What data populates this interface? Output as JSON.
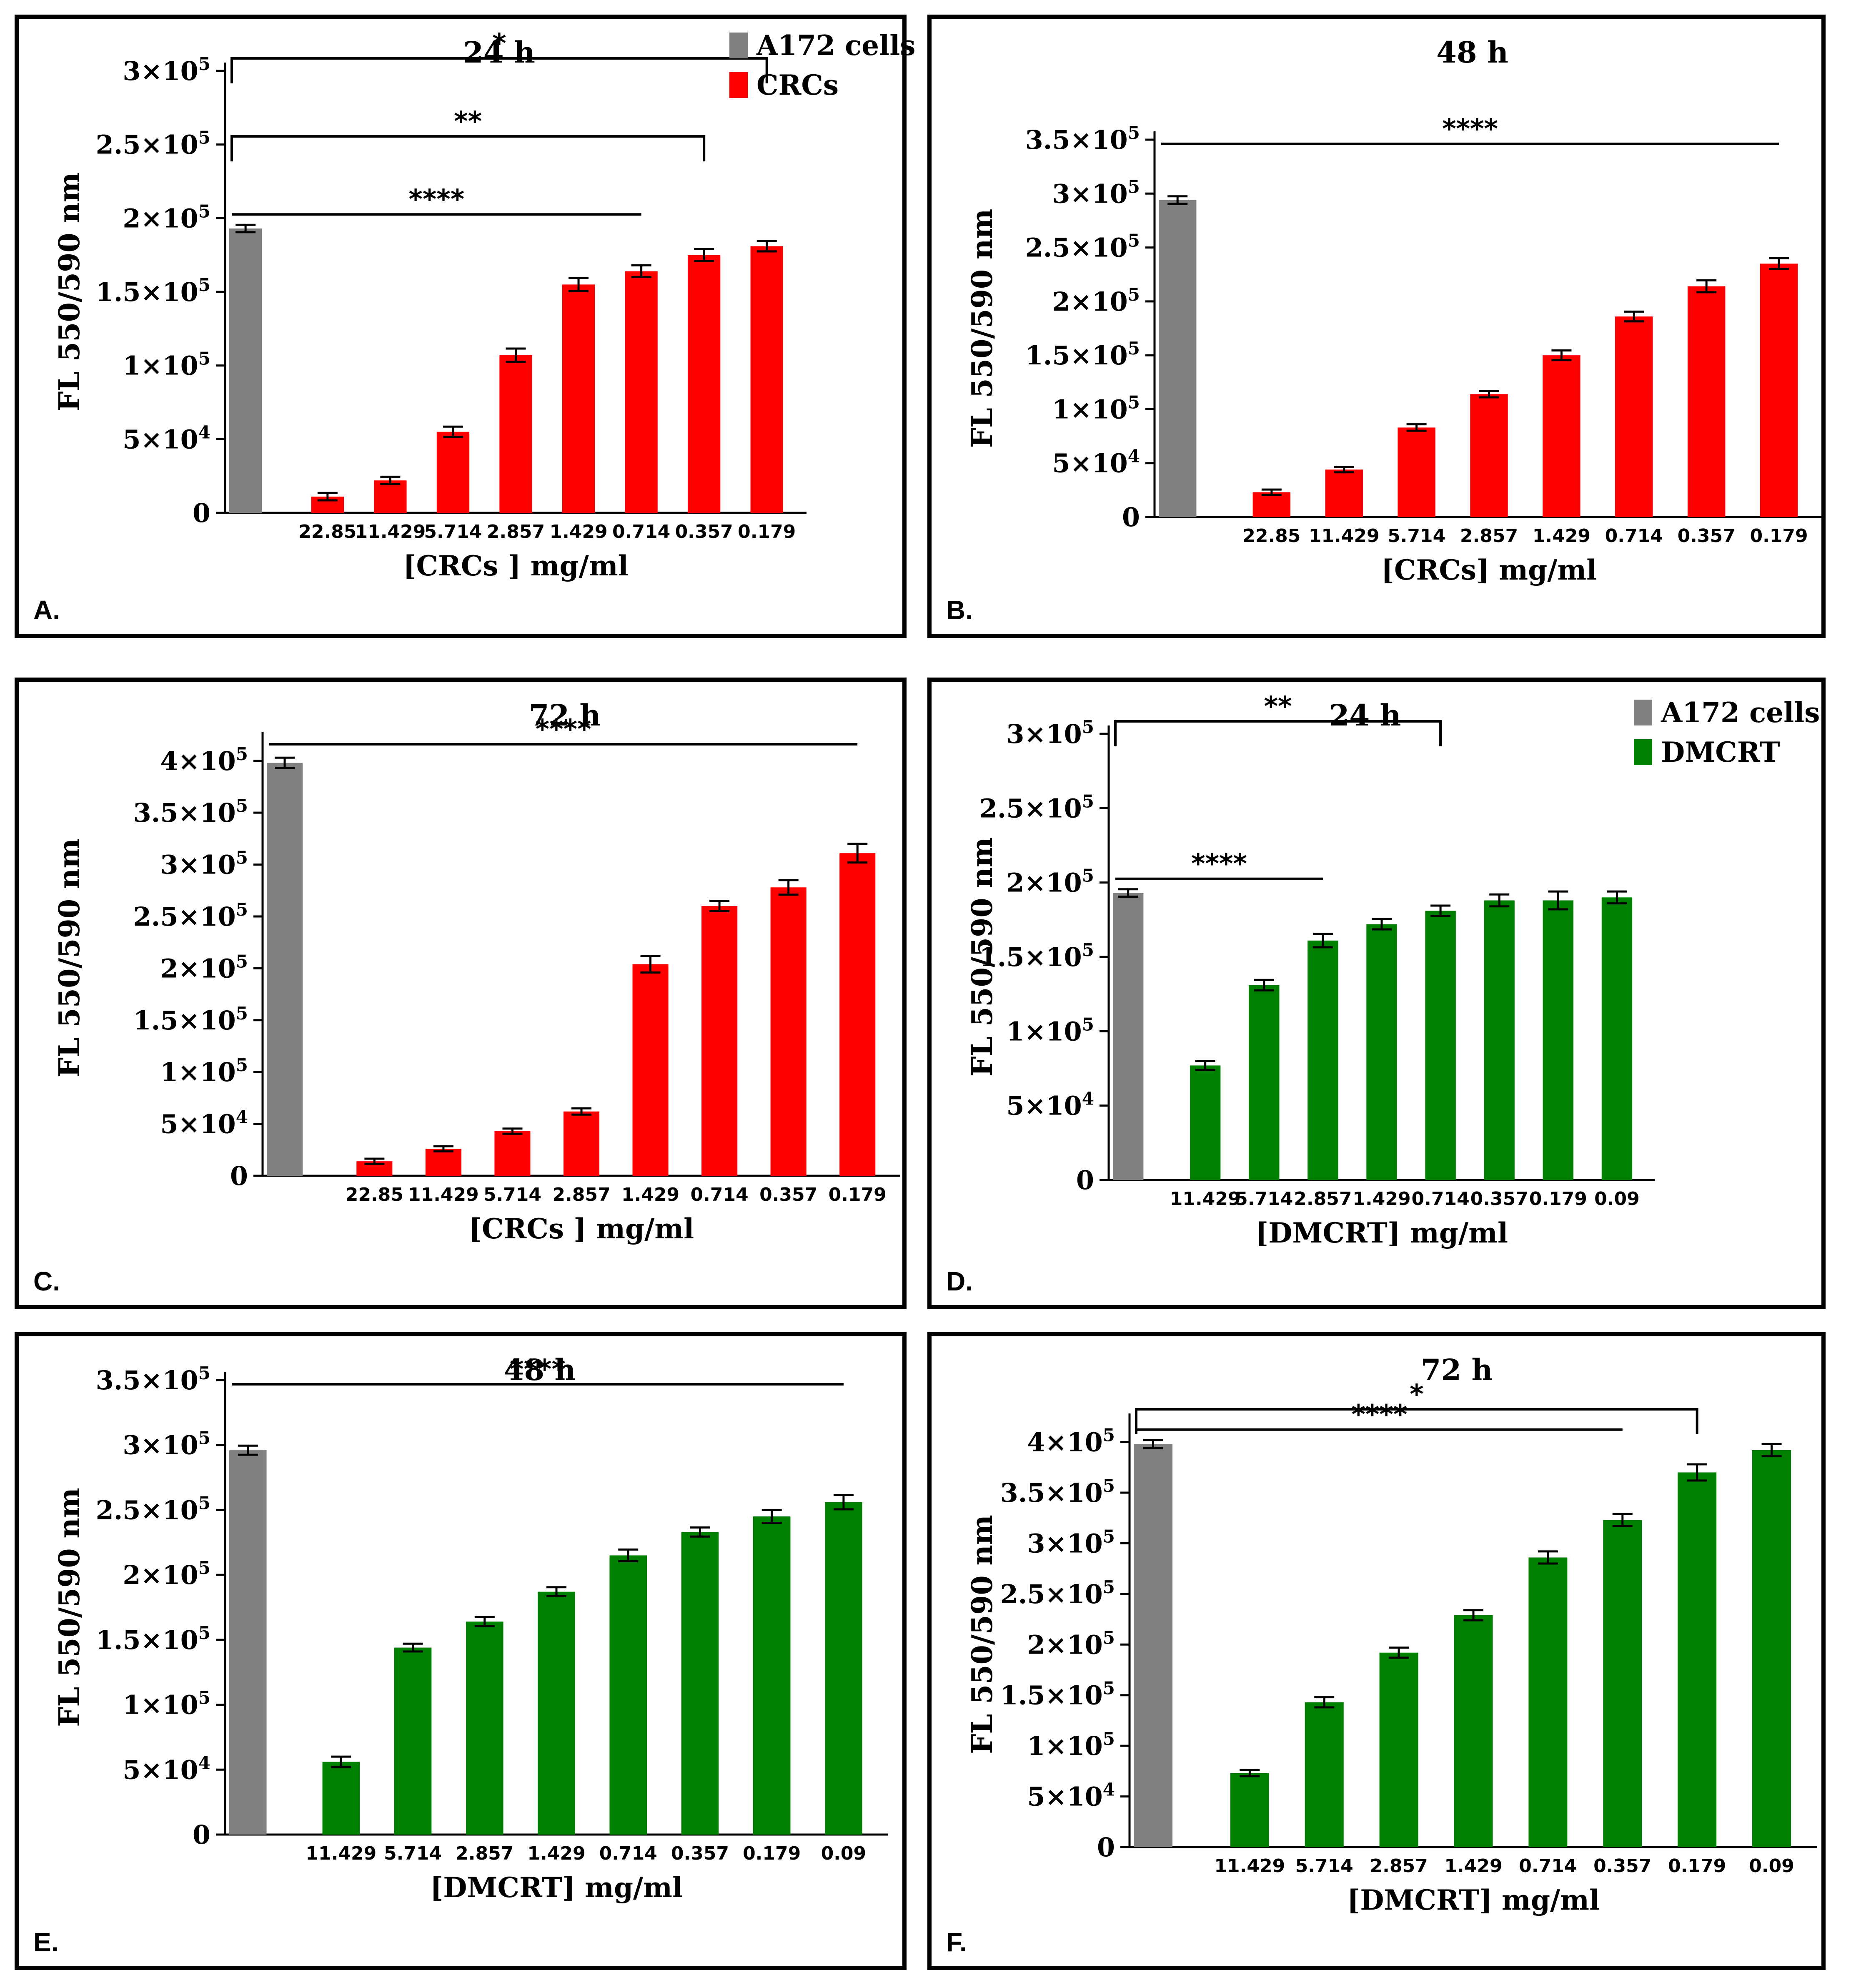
{
  "colors": {
    "control": "#808080",
    "crcs": "#ff0000",
    "dmcrt": "#008000",
    "frame": "#000000",
    "errorbar": "#000000"
  },
  "chart_data": [
    {
      "panel_label": "A.",
      "type": "bar",
      "title": "24 h",
      "ylabel": "FL 550/590 nm",
      "xlabel": "[CRCs ] mg/ml",
      "ylim": [
        0,
        300000
      ],
      "yticks": [
        {
          "value": 0,
          "base": "0",
          "exp": ""
        },
        {
          "value": 50000,
          "base": "5×10",
          "exp": "4"
        },
        {
          "value": 100000,
          "base": "1×10",
          "exp": "5"
        },
        {
          "value": 150000,
          "base": "1.5×10",
          "exp": "5"
        },
        {
          "value": 200000,
          "base": "2×10",
          "exp": "5"
        },
        {
          "value": 250000,
          "base": "2.5×10",
          "exp": "5"
        },
        {
          "value": 300000,
          "base": "3×10",
          "exp": "5"
        }
      ],
      "control": {
        "name": "A172 cells",
        "value": 193000,
        "error": 2500
      },
      "series_name": "CRCs",
      "series_color": "crcs",
      "categories": [
        "22.85",
        "11.429",
        "5.714",
        "2.857",
        "1.429",
        "0.714",
        "0.357",
        "0.179"
      ],
      "values": [
        11000,
        22000,
        55000,
        107000,
        155000,
        164000,
        175000,
        181000
      ],
      "errors": [
        2500,
        2500,
        3500,
        4500,
        4500,
        4000,
        4000,
        3500
      ],
      "legend": {
        "show": true,
        "labels": [
          "A172 cells",
          "CRCs"
        ]
      },
      "significance": [
        {
          "label": "*",
          "to": 7
        },
        {
          "label": "**",
          "to": 6
        },
        {
          "label": "****",
          "to": 5,
          "style": "line"
        }
      ]
    },
    {
      "panel_label": "B.",
      "type": "bar",
      "title": "48 h",
      "ylabel": "FL 550/590 nm",
      "xlabel": "[CRCs] mg/ml",
      "ylim": [
        0,
        350000
      ],
      "yticks": [
        {
          "value": 0,
          "base": "0",
          "exp": ""
        },
        {
          "value": 50000,
          "base": "5×10",
          "exp": "4"
        },
        {
          "value": 100000,
          "base": "1×10",
          "exp": "5"
        },
        {
          "value": 150000,
          "base": "1.5×10",
          "exp": "5"
        },
        {
          "value": 200000,
          "base": "2×10",
          "exp": "5"
        },
        {
          "value": 250000,
          "base": "2.5×10",
          "exp": "5"
        },
        {
          "value": 300000,
          "base": "3×10",
          "exp": "5"
        },
        {
          "value": 350000,
          "base": "3.5×10",
          "exp": "5"
        }
      ],
      "control": {
        "name": "A172 cells",
        "value": 294000,
        "error": 3500
      },
      "series_name": "CRCs",
      "series_color": "crcs",
      "categories": [
        "22.85",
        "11.429",
        "5.714",
        "2.857",
        "1.429",
        "0.714",
        "0.357",
        "0.179"
      ],
      "values": [
        23000,
        44000,
        83000,
        114000,
        150000,
        186000,
        214000,
        235000
      ],
      "errors": [
        2500,
        2500,
        3000,
        3000,
        4500,
        4500,
        5500,
        5000
      ],
      "legend": {
        "show": false,
        "labels": []
      },
      "significance": [
        {
          "label": "****",
          "to": 7,
          "style": "line"
        }
      ]
    },
    {
      "panel_label": "C.",
      "type": "bar",
      "title": "72 h",
      "ylabel": "FL 550/590 nm",
      "xlabel": "[CRCs ] mg/ml",
      "ylim": [
        0,
        420000
      ],
      "yticks": [
        {
          "value": 0,
          "base": "0",
          "exp": ""
        },
        {
          "value": 50000,
          "base": "5×10",
          "exp": "4"
        },
        {
          "value": 100000,
          "base": "1×10",
          "exp": "5"
        },
        {
          "value": 150000,
          "base": "1.5×10",
          "exp": "5"
        },
        {
          "value": 200000,
          "base": "2×10",
          "exp": "5"
        },
        {
          "value": 250000,
          "base": "2.5×10",
          "exp": "5"
        },
        {
          "value": 300000,
          "base": "3×10",
          "exp": "5"
        },
        {
          "value": 350000,
          "base": "3.5×10",
          "exp": "5"
        },
        {
          "value": 400000,
          "base": "4×10",
          "exp": "5"
        }
      ],
      "control": {
        "name": "A172 cells",
        "value": 398000,
        "error": 5000
      },
      "series_name": "CRCs",
      "series_color": "crcs",
      "categories": [
        "22.85",
        "11.429",
        "5.714",
        "2.857",
        "1.429",
        "0.714",
        "0.357",
        "0.179"
      ],
      "values": [
        14000,
        26000,
        43000,
        62000,
        204000,
        260000,
        278000,
        311000
      ],
      "errors": [
        2500,
        2500,
        2500,
        3000,
        8000,
        5000,
        7000,
        9000
      ],
      "legend": {
        "show": false,
        "labels": []
      },
      "significance": [
        {
          "label": "****",
          "to": 7,
          "style": "line"
        }
      ]
    },
    {
      "panel_label": "D.",
      "type": "bar",
      "title": "24 h",
      "ylabel": "FL 550/590 nm",
      "xlabel": "[DMCRT] mg/ml",
      "ylim": [
        0,
        300000
      ],
      "yticks": [
        {
          "value": 0,
          "base": "0",
          "exp": ""
        },
        {
          "value": 50000,
          "base": "5×10",
          "exp": "4"
        },
        {
          "value": 100000,
          "base": "1×10",
          "exp": "5"
        },
        {
          "value": 150000,
          "base": "1.5×10",
          "exp": "5"
        },
        {
          "value": 200000,
          "base": "2×10",
          "exp": "5"
        },
        {
          "value": 250000,
          "base": "2.5×10",
          "exp": "5"
        },
        {
          "value": 300000,
          "base": "3×10",
          "exp": "5"
        }
      ],
      "control": {
        "name": "A172 cells",
        "value": 193000,
        "error": 2500
      },
      "series_name": "DMCRT",
      "series_color": "dmcrt",
      "categories": [
        "11.429",
        "5.714",
        "2.857",
        "1.429",
        "0.714",
        "0.357",
        "0.179",
        "0.09"
      ],
      "values": [
        77000,
        131000,
        161000,
        172000,
        181000,
        188000,
        188000,
        190000
      ],
      "errors": [
        3000,
        3500,
        4500,
        3500,
        3500,
        4000,
        6000,
        4000
      ],
      "legend": {
        "show": true,
        "labels": [
          "A172 cells",
          "DMCRT"
        ]
      },
      "significance": [
        {
          "label": "**",
          "to": 4
        },
        {
          "label": "****",
          "to": 2,
          "style": "line"
        }
      ]
    },
    {
      "panel_label": "E.",
      "type": "bar",
      "title": "48 h",
      "ylabel": "FL 550/590 nm",
      "xlabel": "[DMCRT] mg/ml",
      "ylim": [
        0,
        350000
      ],
      "yticks": [
        {
          "value": 0,
          "base": "0",
          "exp": ""
        },
        {
          "value": 50000,
          "base": "5×10",
          "exp": "4"
        },
        {
          "value": 100000,
          "base": "1×10",
          "exp": "5"
        },
        {
          "value": 150000,
          "base": "1.5×10",
          "exp": "5"
        },
        {
          "value": 200000,
          "base": "2×10",
          "exp": "5"
        },
        {
          "value": 250000,
          "base": "2.5×10",
          "exp": "5"
        },
        {
          "value": 300000,
          "base": "3×10",
          "exp": "5"
        },
        {
          "value": 350000,
          "base": "3.5×10",
          "exp": "5"
        }
      ],
      "control": {
        "name": "A172 cells",
        "value": 296000,
        "error": 3500
      },
      "series_name": "DMCRT",
      "series_color": "dmcrt",
      "categories": [
        "11.429",
        "5.714",
        "2.857",
        "1.429",
        "0.714",
        "0.357",
        "0.179",
        "0.09"
      ],
      "values": [
        56000,
        144000,
        164000,
        187000,
        215000,
        233000,
        245000,
        256000
      ],
      "errors": [
        4000,
        3000,
        3500,
        3500,
        4500,
        3500,
        5000,
        5500
      ],
      "legend": {
        "show": false,
        "labels": []
      },
      "significance": [
        {
          "label": "****",
          "to": 7,
          "style": "line"
        }
      ]
    },
    {
      "panel_label": "F.",
      "type": "bar",
      "title": "72 h",
      "ylabel": "FL 550/590 nm",
      "xlabel": "[DMCRT] mg/ml",
      "ylim": [
        0,
        420000
      ],
      "yticks": [
        {
          "value": 0,
          "base": "0",
          "exp": ""
        },
        {
          "value": 50000,
          "base": "5×10",
          "exp": "4"
        },
        {
          "value": 100000,
          "base": "1×10",
          "exp": "5"
        },
        {
          "value": 150000,
          "base": "1.5×10",
          "exp": "5"
        },
        {
          "value": 200000,
          "base": "2×10",
          "exp": "5"
        },
        {
          "value": 250000,
          "base": "2.5×10",
          "exp": "5"
        },
        {
          "value": 300000,
          "base": "3×10",
          "exp": "5"
        },
        {
          "value": 350000,
          "base": "3.5×10",
          "exp": "5"
        },
        {
          "value": 400000,
          "base": "4×10",
          "exp": "5"
        }
      ],
      "control": {
        "name": "A172 cells",
        "value": 398000,
        "error": 4000
      },
      "series_name": "DMCRT",
      "series_color": "dmcrt",
      "categories": [
        "11.429",
        "5.714",
        "2.857",
        "1.429",
        "0.714",
        "0.357",
        "0.179",
        "0.09"
      ],
      "values": [
        73000,
        143000,
        192000,
        229000,
        286000,
        323000,
        370000,
        392000
      ],
      "errors": [
        3000,
        5000,
        5000,
        5000,
        6000,
        6000,
        8000,
        6000
      ],
      "legend": {
        "show": false,
        "labels": []
      },
      "significance": [
        {
          "label": "*",
          "to": 6
        },
        {
          "label": "****",
          "to": 5,
          "style": "line"
        }
      ]
    }
  ]
}
